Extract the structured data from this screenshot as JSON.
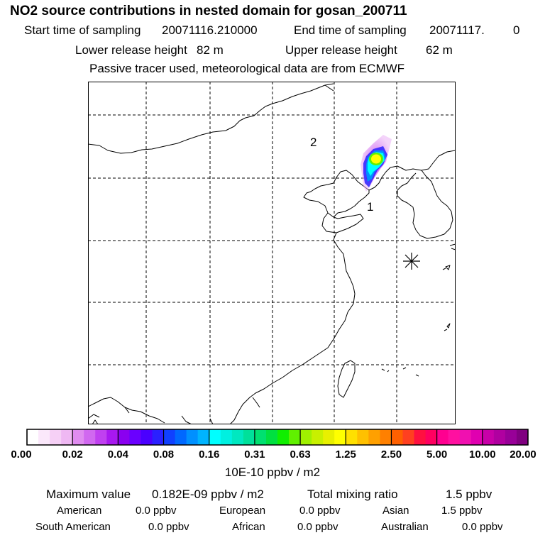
{
  "header": {
    "title": "NO2 source contributions in nested domain for gosan_200711",
    "start_label": "Start time of sampling",
    "start_value": "20071116.210000",
    "end_label": "End time of sampling",
    "end_value": "20071117.",
    "end_suffix": "0",
    "lower_label": "Lower release height",
    "lower_value": "82 m",
    "upper_label": "Upper release height",
    "upper_value": "62 m",
    "tracer_note": "Passive tracer used, meteorological data are from ECMWF"
  },
  "map": {
    "region_labels": [
      "1",
      "2"
    ],
    "receptor": "gosan",
    "colors": {
      "coast": "#000000",
      "grid": "#000000"
    }
  },
  "colorbar": {
    "unit": "10E-10 ppbv / m2",
    "tick_labels": [
      "0.00",
      "0.02",
      "0.04",
      "0.08",
      "0.16",
      "0.31",
      "0.63",
      "1.25",
      "2.50",
      "5.00",
      "10.00",
      "20.00"
    ],
    "colors": [
      "#ffffff",
      "#fbe8fb",
      "#f6d0f6",
      "#efb8f3",
      "#e08cf0",
      "#d168f0",
      "#c040f0",
      "#a818f0",
      "#8a00f0",
      "#6a00ff",
      "#4a00ff",
      "#2a20ff",
      "#1040ff",
      "#0068ff",
      "#0090ff",
      "#00b4ff",
      "#00ffff",
      "#00f0e0",
      "#00e8c0",
      "#00e09a",
      "#00e070",
      "#00e040",
      "#10ee00",
      "#60f000",
      "#a0f000",
      "#c8f000",
      "#e8f000",
      "#ffff00",
      "#ffe000",
      "#ffc000",
      "#ffa000",
      "#ff8000",
      "#ff6000",
      "#ff4020",
      "#ff1040",
      "#ff0060",
      "#ff0090",
      "#ff10a0",
      "#f010b0",
      "#e000b0",
      "#c800a8",
      "#b000a0",
      "#980098",
      "#800080"
    ]
  },
  "stats": {
    "max_label": "Maximum value",
    "max_value": "0.182E-09 ppbv / m2",
    "total_label": "Total mixing ratio",
    "total_value": "1.5 ppbv",
    "regions": [
      {
        "name": "American",
        "value": "0.0 ppbv"
      },
      {
        "name": "European",
        "value": "0.0 ppbv"
      },
      {
        "name": "Asian",
        "value": "1.5 ppbv"
      },
      {
        "name": "South American",
        "value": "0.0 ppbv"
      },
      {
        "name": "African",
        "value": "0.0 ppbv"
      },
      {
        "name": "Australian",
        "value": "0.0 ppbv"
      }
    ]
  }
}
